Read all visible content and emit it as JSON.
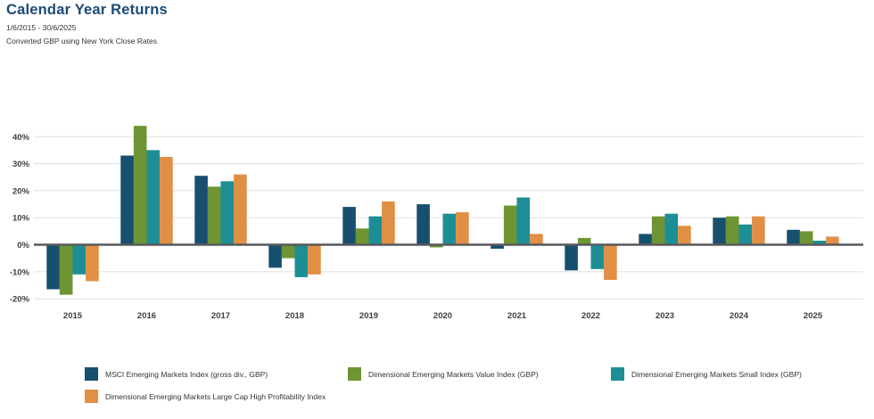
{
  "header": {
    "title": "Calendar Year Returns",
    "date_range": "1/6/2015 - 30/6/2025",
    "conversion_note": "Converted GBP using New York Close Rates"
  },
  "colors": {
    "title": "#1b4b77",
    "text": "#333333",
    "axis_label": "#3f3f3f",
    "gridline": "#e4e4e4",
    "zero_line": "#58595b"
  },
  "chart_data": {
    "type": "bar",
    "title": "Calendar Year Returns",
    "subtitle": "1/6/2015 - 30/6/2025",
    "note": "Converted GBP using New York Close Rates",
    "value_format": "percent",
    "grid": true,
    "legend_position": "bottom",
    "ylim": [
      -22,
      47
    ],
    "yticks_percent": [
      40,
      30,
      20,
      10,
      0,
      -10,
      -20
    ],
    "categories": [
      "2015",
      "2016",
      "2017",
      "2018",
      "2019",
      "2020",
      "2021",
      "2022",
      "2023",
      "2024",
      "2025"
    ],
    "series": [
      {
        "name": "MSCI Emerging Markets Index (gross div., GBP)",
        "color": "#174f6f",
        "values": [
          -16.5,
          33,
          25.5,
          -8.5,
          14,
          15,
          -1.5,
          -9.5,
          4,
          10,
          5.5
        ]
      },
      {
        "name": "Dimensional Emerging Markets Value Index (GBP)",
        "color": "#6e9434",
        "values": [
          -18.5,
          44,
          21.5,
          -5,
          6,
          -1,
          14.5,
          2.5,
          10.5,
          10.5,
          5
        ]
      },
      {
        "name": "Dimensional Emerging Markets Small Index (GBP)",
        "color": "#1d8e96",
        "values": [
          -11,
          35,
          23.5,
          -12,
          10.5,
          11.5,
          17.5,
          -9,
          11.5,
          7.5,
          1.5
        ]
      },
      {
        "name": "Dimensional Emerging Markets Large Cap High Profitability Index",
        "color": "#e08f45",
        "values": [
          -13.5,
          32.5,
          26,
          -11,
          16,
          12,
          4,
          -13,
          7,
          10.5,
          3
        ]
      }
    ]
  }
}
